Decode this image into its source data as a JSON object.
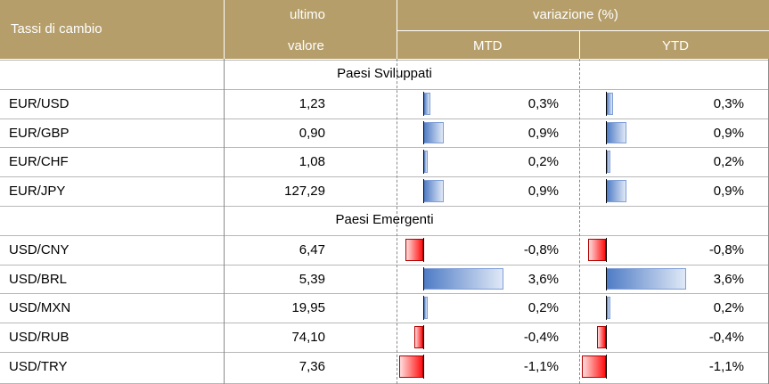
{
  "header": {
    "col1": "Tassi di cambio",
    "col2_line1": "ultimo",
    "col2_line2": "valore",
    "group": "variazione (%)",
    "mtd": "MTD",
    "ytd": "YTD"
  },
  "sections": [
    {
      "title": "Paesi Sviluppati",
      "rows": [
        {
          "pair": "EUR/USD",
          "value": "1,23",
          "mtd": "0,3%",
          "ytd": "0,3%",
          "mtd_num": 0.3,
          "ytd_num": 0.3
        },
        {
          "pair": "EUR/GBP",
          "value": "0,90",
          "mtd": "0,9%",
          "ytd": "0,9%",
          "mtd_num": 0.9,
          "ytd_num": 0.9
        },
        {
          "pair": "EUR/CHF",
          "value": "1,08",
          "mtd": "0,2%",
          "ytd": "0,2%",
          "mtd_num": 0.2,
          "ytd_num": 0.2
        },
        {
          "pair": "EUR/JPY",
          "value": "127,29",
          "mtd": "0,9%",
          "ytd": "0,9%",
          "mtd_num": 0.9,
          "ytd_num": 0.9
        }
      ]
    },
    {
      "title": "Paesi Emergenti",
      "rows": [
        {
          "pair": "USD/CNY",
          "value": "6,47",
          "mtd": "-0,8%",
          "ytd": "-0,8%",
          "mtd_num": -0.8,
          "ytd_num": -0.8
        },
        {
          "pair": "USD/BRL",
          "value": "5,39",
          "mtd": "3,6%",
          "ytd": "3,6%",
          "mtd_num": 3.6,
          "ytd_num": 3.6
        },
        {
          "pair": "USD/MXN",
          "value": "19,95",
          "mtd": "0,2%",
          "ytd": "0,2%",
          "mtd_num": 0.2,
          "ytd_num": 0.2
        },
        {
          "pair": "USD/RUB",
          "value": "74,10",
          "mtd": "-0,4%",
          "ytd": "-0,4%",
          "mtd_num": -0.4,
          "ytd_num": -0.4
        },
        {
          "pair": "USD/TRY",
          "value": "7,36",
          "mtd": "-1,1%",
          "ytd": "-1,1%",
          "mtd_num": -1.1,
          "ytd_num": -1.1
        }
      ]
    }
  ],
  "colors": {
    "header_bg": "#b59e6a",
    "positive_bar": "#4f7cc6",
    "negative_bar": "#ff1010"
  }
}
